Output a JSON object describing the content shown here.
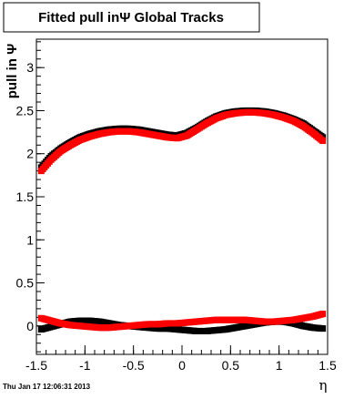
{
  "page": {
    "title": "Fitted pull inΨ   Global Tracks",
    "timestamp": "Thu Jan 17 12:06:31 2013"
  },
  "chart_data": {
    "type": "scatter",
    "title": "Fitted pull inΨ   Global Tracks",
    "xlabel": "η",
    "ylabel": "pull in Ψ",
    "xlim": [
      -1.5,
      1.5
    ],
    "ylim": [
      -0.33,
      3.33
    ],
    "x_ticks": [
      "-1.5",
      "-1",
      "-0.5",
      "0",
      "0.5",
      "1",
      "1.5"
    ],
    "y_ticks": [
      "0",
      "0.5",
      "1",
      "1.5",
      "2",
      "2.5",
      "3"
    ],
    "grid": false,
    "legend": "none",
    "series": [
      {
        "color": "#000000",
        "marker": "square",
        "x": [
          -1.45,
          -1.35,
          -1.25,
          -1.15,
          -1.05,
          -0.95,
          -0.85,
          -0.75,
          -0.65,
          -0.55,
          -0.45,
          -0.35,
          -0.25,
          -0.15,
          -0.05,
          0.05,
          0.15,
          0.25,
          0.35,
          0.45,
          0.55,
          0.65,
          0.75,
          0.85,
          0.95,
          1.05,
          1.15,
          1.25,
          1.35,
          1.45
        ],
        "y": [
          1.84,
          1.97,
          2.06,
          2.13,
          2.19,
          2.23,
          2.26,
          2.28,
          2.29,
          2.29,
          2.28,
          2.26,
          2.24,
          2.22,
          2.21,
          2.24,
          2.3,
          2.37,
          2.43,
          2.47,
          2.49,
          2.5,
          2.5,
          2.49,
          2.47,
          2.44,
          2.4,
          2.35,
          2.27,
          2.19
        ]
      },
      {
        "color": "#ff0000",
        "marker": "square",
        "x": [
          -1.45,
          -1.35,
          -1.25,
          -1.15,
          -1.05,
          -0.95,
          -0.85,
          -0.75,
          -0.65,
          -0.55,
          -0.45,
          -0.35,
          -0.25,
          -0.15,
          -0.05,
          0.05,
          0.15,
          0.25,
          0.35,
          0.45,
          0.55,
          0.65,
          0.75,
          0.85,
          0.95,
          1.05,
          1.15,
          1.25,
          1.35,
          1.45
        ],
        "y": [
          1.8,
          1.93,
          2.03,
          2.1,
          2.16,
          2.2,
          2.23,
          2.25,
          2.26,
          2.26,
          2.25,
          2.23,
          2.21,
          2.19,
          2.18,
          2.21,
          2.28,
          2.35,
          2.41,
          2.45,
          2.47,
          2.48,
          2.48,
          2.47,
          2.45,
          2.42,
          2.38,
          2.32,
          2.24,
          2.15
        ]
      },
      {
        "color": "#000000",
        "marker": "square",
        "x": [
          -1.45,
          -1.35,
          -1.25,
          -1.15,
          -1.05,
          -0.95,
          -0.85,
          -0.75,
          -0.65,
          -0.55,
          -0.45,
          -0.35,
          -0.25,
          -0.15,
          -0.05,
          0.05,
          0.15,
          0.25,
          0.35,
          0.45,
          0.55,
          0.65,
          0.75,
          0.85,
          0.95,
          1.05,
          1.15,
          1.25,
          1.35,
          1.45
        ],
        "y": [
          -0.04,
          -0.01,
          0.02,
          0.05,
          0.06,
          0.06,
          0.05,
          0.03,
          0.01,
          0.0,
          -0.01,
          -0.02,
          -0.03,
          -0.03,
          -0.04,
          -0.05,
          -0.06,
          -0.06,
          -0.05,
          -0.04,
          -0.02,
          0.0,
          0.02,
          0.04,
          0.05,
          0.05,
          0.03,
          0.0,
          -0.02,
          -0.03
        ]
      },
      {
        "color": "#ff0000",
        "marker": "square",
        "x": [
          -1.45,
          -1.35,
          -1.25,
          -1.15,
          -1.05,
          -0.95,
          -0.85,
          -0.75,
          -0.65,
          -0.55,
          -0.45,
          -0.35,
          -0.25,
          -0.15,
          -0.05,
          0.05,
          0.15,
          0.25,
          0.35,
          0.45,
          0.55,
          0.65,
          0.75,
          0.85,
          0.95,
          1.05,
          1.15,
          1.25,
          1.35,
          1.45
        ],
        "y": [
          0.09,
          0.06,
          0.03,
          0.01,
          0.0,
          -0.01,
          -0.02,
          -0.02,
          -0.01,
          0.0,
          0.01,
          0.02,
          0.02,
          0.03,
          0.03,
          0.04,
          0.05,
          0.06,
          0.07,
          0.07,
          0.07,
          0.07,
          0.06,
          0.05,
          0.05,
          0.06,
          0.07,
          0.09,
          0.11,
          0.14
        ]
      }
    ]
  }
}
